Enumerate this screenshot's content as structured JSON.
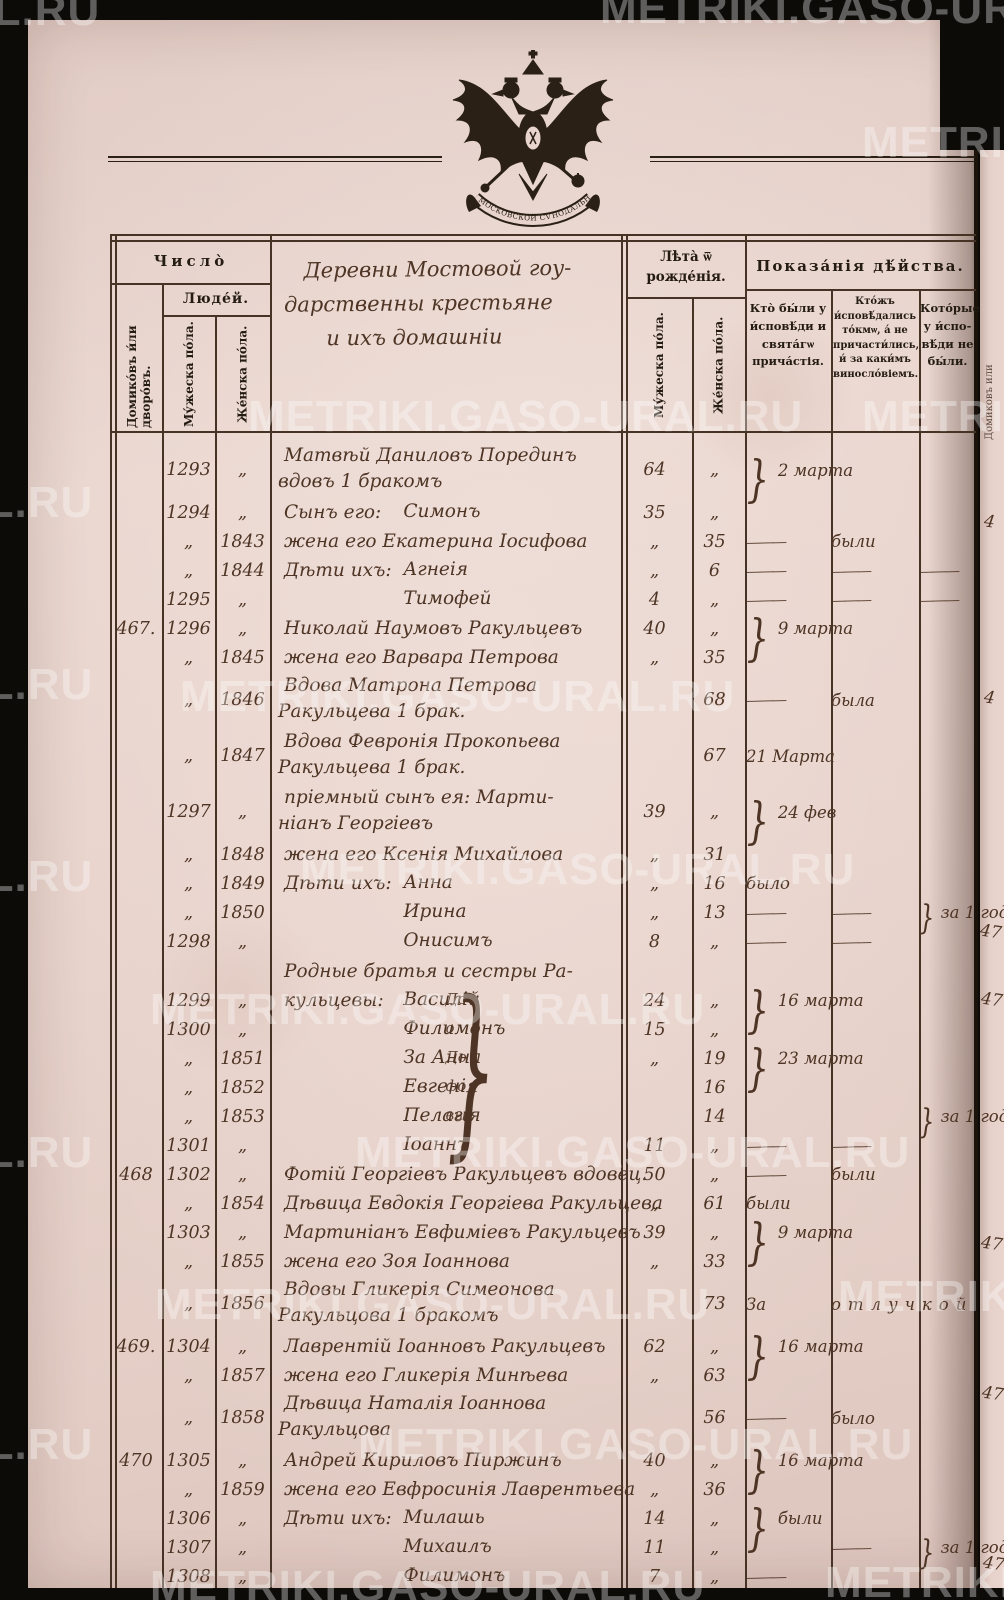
{
  "watermark": {
    "text": "METRIKI.GASO-URAL.RU"
  },
  "emblem": {
    "name": "imperial-double-headed-eagle",
    "ribbon": "МОСКОВСКОЙ СѴНОДАЛЬНОЙ ТѴПОГРАФІИ"
  },
  "header": {
    "chislo": "Число̀",
    "col_house": "Домико́въ и́ли дворо́въ.",
    "lyudey": "Люде́й.",
    "male": "Му́жеска по́ла.",
    "female": "Же́нска по́ла.",
    "leta": "Лѣта̀ ѿ рожде́нія.",
    "pokazaniya": "Показа́нія дѣ́йства.",
    "col_confessed": "Кто̀ бы́ли у и́сповѣ́ди и свята́гѡ прича́стія.",
    "col_confessed_only": "Кто́жъ и́сповѣ́дались то́кмѡ, а́ не причасти́лись, и́ за каки́мъ виносло́віемъ.",
    "col_absent": "Кото́рые у и́спо­вѣ́ди не бы́ли."
  },
  "village_heading": [
    "Деревни Мостовой гоу-",
    "дарственны крестьяне",
    "и ихъ домашніи"
  ],
  "rows": [
    {
      "m": "1293",
      "f": "„",
      "n": "Матвѣй Даниловъ Порединъ",
      "n2": "вдовъ 1 бракомъ",
      "am": "64",
      "af": "„",
      "br": "2 марта"
    },
    {
      "m": "1294",
      "f": "„",
      "n": "Сынъ его:",
      "nc": "Симонъ",
      "am": "35",
      "af": "„"
    },
    {
      "m": "„",
      "f": "1843",
      "n": "жена его Екатерина Іосифова",
      "am": "„",
      "af": "35",
      "a1": "———",
      "a2": "были"
    },
    {
      "m": "„",
      "f": "1844",
      "n": "Дѣти ихъ:",
      "nc": "Агнеія",
      "am": "„",
      "af": "6",
      "a1": "———",
      "a2": "———",
      "a3": "———"
    },
    {
      "m": "1295",
      "f": "„",
      "nc": "Тимофей",
      "am": "4",
      "af": "„",
      "a1": "———",
      "a2": "———",
      "a3": "———"
    },
    {
      "house": "467.",
      "m": "1296",
      "f": "„",
      "n": "Николай Наумовъ Ракульцевъ",
      "am": "40",
      "af": "„",
      "br": "9 марта"
    },
    {
      "m": "„",
      "f": "1845",
      "n": "жена его Варвара Петрова",
      "am": "„",
      "af": "35"
    },
    {
      "m": "„",
      "f": "1846",
      "n": "Вдова Матрона Петрова",
      "n2": "Ракульцева 1 брак.",
      "af": "68",
      "a1": "———",
      "a2": "была"
    },
    {
      "m": "„",
      "f": "1847",
      "n": "Вдова Февронія Прокопьева",
      "n2": "Ракульцева 1 брак.",
      "af": "67",
      "a1": "21 Марта"
    },
    {
      "m": "1297",
      "f": "„",
      "n": "пріемный сынъ ея: Марти-",
      "n2": "ніанъ Георгіевъ",
      "am": "39",
      "af": "„",
      "br": "24 фев"
    },
    {
      "m": "„",
      "f": "1848",
      "n": "жена его Ксенія Михайлова",
      "am": "„",
      "af": "31"
    },
    {
      "m": "„",
      "f": "1849",
      "n": "Дѣти ихъ:",
      "nc": "Анна",
      "am": "„",
      "af": "16",
      "a1": "было"
    },
    {
      "m": "„",
      "f": "1850",
      "nc": "Ирина",
      "am": "„",
      "af": "13",
      "a1": "———",
      "a2": "———",
      "br3": "за 1 годъ"
    },
    {
      "m": "1298",
      "f": "„",
      "nc": "Онисимъ",
      "am": "8",
      "af": "„",
      "a1": "———",
      "a2": "———"
    },
    {
      "section": true,
      "n": "Родные братья и сестры Ра-"
    },
    {
      "m": "1299",
      "f": "„",
      "n": "кульцевы:",
      "nc": "Василій",
      "tag": "До",
      "am": "24",
      "af": "„",
      "br": "16 марта"
    },
    {
      "m": "1300",
      "f": "„",
      "nc": "Филимонъ",
      "tag": "о",
      "am": "15",
      "af": "„"
    },
    {
      "m": "„",
      "f": "1851",
      "nc": "За Анна",
      "tag": "До",
      "am": "„",
      "af": "19",
      "br": "23 марта"
    },
    {
      "m": "„",
      "f": "1852",
      "nc": "Евгенія",
      "tag": "фо",
      "af": "16"
    },
    {
      "m": "„",
      "f": "1853",
      "nc": "Пелагія",
      "tag": "вы",
      "af": "14",
      "br3": "за 1 годъ"
    },
    {
      "m": "1301",
      "f": "„",
      "nc": "Іоаннъ",
      "am": "11",
      "af": "„",
      "a1": "———",
      "a2": "———"
    },
    {
      "house": "468",
      "m": "1302",
      "f": "„",
      "n": "Фотій Георгіевъ Ракульцевъ вдовец.",
      "am": "50",
      "af": "„",
      "a1": "———",
      "a2": "были"
    },
    {
      "m": "„",
      "f": "1854",
      "n": "Дѣвица Евдокія Георгіева Ракульцева",
      "am": "„",
      "af": "61",
      "a1": "были"
    },
    {
      "m": "1303",
      "f": "„",
      "n": "Мартиніанъ Евфиміевъ Ракульцевъ",
      "am": "39",
      "af": "„",
      "br": "9 марта"
    },
    {
      "m": "„",
      "f": "1855",
      "n": "жена его Зоя Іоаннова",
      "am": "„",
      "af": "33"
    },
    {
      "m": "„",
      "f": "1856",
      "n": "Вдовы Гликерія Симеонова",
      "n2": "Ракульцова 1 бракомъ",
      "af": "73",
      "a1": "За",
      "a2": "отлучкой",
      "sp2": true
    },
    {
      "house": "469.",
      "m": "1304",
      "f": "„",
      "n": "Лаврентій Іоанновъ Ракульцевъ",
      "am": "62",
      "af": "„",
      "br": "16 марта"
    },
    {
      "m": "„",
      "f": "1857",
      "n": "жена его Гликерія Минѣева",
      "am": "„",
      "af": "63"
    },
    {
      "m": "„",
      "f": "1858",
      "n": "Дѣвица Наталія Іоаннова",
      "n2": "Ракульцова",
      "af": "56",
      "a1": "———",
      "a2": "было"
    },
    {
      "house": "470",
      "m": "1305",
      "f": "„",
      "n": "Андрей Кириловъ Пиржинъ",
      "am": "40",
      "af": "„",
      "br": "16 марта"
    },
    {
      "m": "„",
      "f": "1859",
      "n": "жена его Евфросинія Лаврентьева",
      "am": "„",
      "af": "36"
    },
    {
      "m": "1306",
      "f": "„",
      "n": "Дѣти ихъ:",
      "nc": "Милашь",
      "am": "14",
      "af": "„",
      "br": "были"
    },
    {
      "m": "1307",
      "f": "„",
      "nc": "Михаилъ",
      "am": "11",
      "af": "„",
      "a2": "———",
      "br3": "за 1 годъ"
    },
    {
      "m": "1308",
      "f": "„",
      "nc": "Филимонъ",
      "am": "7",
      "af": "„",
      "a1": "———"
    }
  ],
  "side_numbers": [
    "4",
    "4",
    "47",
    "47",
    "47",
    "47",
    "47"
  ],
  "side_vertical": "Домиковъ или",
  "big_brace": "}"
}
